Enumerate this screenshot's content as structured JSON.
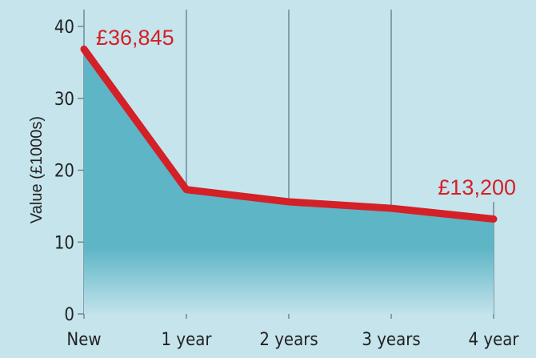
{
  "chart_data": {
    "type": "area",
    "title": "",
    "xlabel": "",
    "ylabel": "Value (£1000s)",
    "categories": [
      "New",
      "1 year",
      "2 years",
      "3 years",
      "4 year"
    ],
    "values": [
      36.845,
      17.3,
      15.6,
      14.7,
      13.2
    ],
    "ylim": [
      0,
      40
    ],
    "yticks": [
      0,
      10,
      20,
      30,
      40
    ],
    "grid": "vertical lines at each category",
    "annotations": [
      {
        "category": "New",
        "text": "£36,845"
      },
      {
        "category": "4 year",
        "text": "£13,200"
      }
    ],
    "colors": {
      "line": "#d42027",
      "fill": "#5db5c6",
      "background": "#c6e4ec",
      "grid": "#6e8a94"
    }
  }
}
